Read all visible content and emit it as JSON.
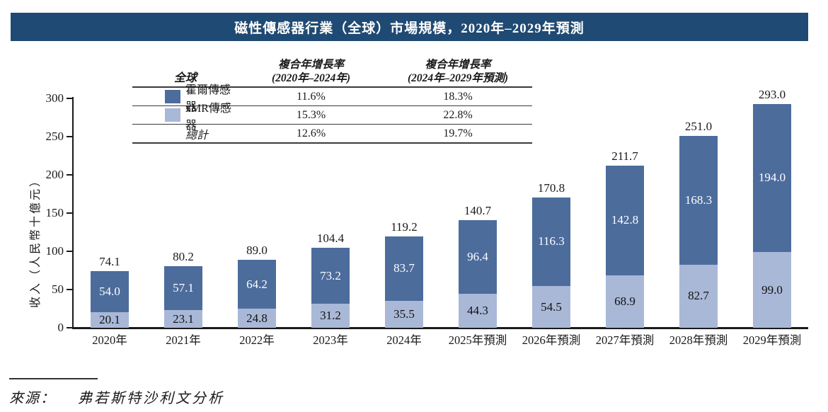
{
  "title": "磁性傳感器行業（全球）市場規模，2020年–2029年預測",
  "colors": {
    "title_bar_bg": "#1f4a73",
    "title_text": "#ffffff",
    "hall_blue": "#4c6c9c",
    "xmr_blue": "#a9b8d7",
    "axis": "#1a1a1a",
    "table_line": "#3a3a3a"
  },
  "legend_table": {
    "header": {
      "col1": "全球",
      "col2_line1": "複合年增長率",
      "col2_line2": "(2020年–2024年)",
      "col3_line1": "複合年增長率",
      "col3_line2": "(2024年–2029年預測)"
    },
    "rows": [
      {
        "label": "霍爾傳感器",
        "cagr_2020_2024": "11.6%",
        "cagr_2024_2029": "18.3%"
      },
      {
        "label": "xMR傳感器",
        "cagr_2020_2024": "15.3%",
        "cagr_2024_2029": "22.8%"
      },
      {
        "label": "總計",
        "cagr_2020_2024": "12.6%",
        "cagr_2024_2029": "19.7%"
      }
    ]
  },
  "chart_data": {
    "type": "bar",
    "stacked": true,
    "title": "磁性傳感器行業（全球）市場規模，2020年–2029年預測",
    "categories": [
      "2020年",
      "2021年",
      "2022年",
      "2023年",
      "2024年",
      "2025年預測",
      "2026年預測",
      "2027年預測",
      "2028年預測",
      "2029年預測"
    ],
    "series": [
      {
        "name": "xMR傳感器",
        "color": "#a9b8d7",
        "label_color": "#111111",
        "values": [
          20.1,
          23.1,
          24.8,
          31.2,
          35.5,
          44.3,
          54.5,
          68.9,
          82.7,
          99.0
        ]
      },
      {
        "name": "霍爾傳感器",
        "color": "#4c6c9c",
        "label_color": "#ffffff",
        "values": [
          54.0,
          57.1,
          64.2,
          73.2,
          83.7,
          96.4,
          116.3,
          142.8,
          168.3,
          194.0
        ]
      }
    ],
    "totals": [
      74.1,
      80.2,
      89.0,
      104.4,
      119.2,
      140.7,
      170.8,
      211.7,
      251.0,
      293.0
    ],
    "xlabel": "",
    "ylabel": "收入（人民幣十億元）",
    "yticks": [
      0,
      50,
      100,
      150,
      200,
      250,
      300
    ],
    "ylim": [
      0,
      300
    ],
    "grid": false,
    "legend_position": "top-table"
  },
  "source": {
    "label": "來源：",
    "text": "弗若斯特沙利文分析"
  }
}
